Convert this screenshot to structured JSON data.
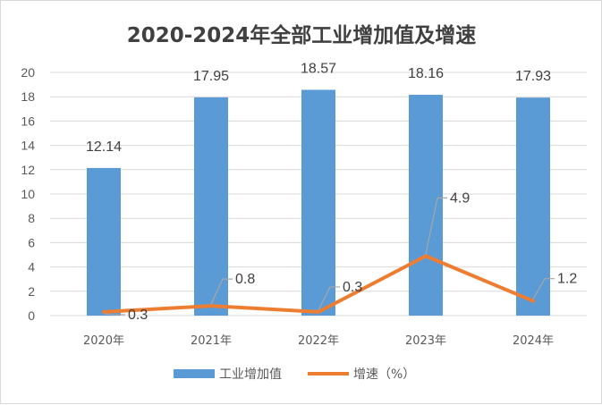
{
  "chart_data": {
    "type": "bar",
    "title": "2020-2024年全部工业增加值及增速",
    "categories": [
      "2020年",
      "2021年",
      "2022年",
      "2023年",
      "2024年"
    ],
    "series": [
      {
        "name": "工业增加值",
        "type": "bar",
        "color": "#5b9bd5",
        "values": [
          12.14,
          17.95,
          18.57,
          18.16,
          17.93
        ],
        "labels": [
          "12.14",
          "17.95",
          "18.57",
          "18.16",
          "17.93"
        ]
      },
      {
        "name": "增速（%）",
        "type": "line",
        "color": "#ed7d31",
        "values": [
          0.3,
          0.8,
          0.3,
          4.9,
          1.2
        ],
        "labels": [
          "0.3",
          "0.8",
          "0.3",
          "4.9",
          "1.2"
        ]
      }
    ],
    "ylim": [
      0,
      20
    ],
    "yticks": [
      "0",
      "2",
      "4",
      "6",
      "8",
      "10",
      "12",
      "14",
      "16",
      "18",
      "20"
    ],
    "grid": true,
    "legend": "bottom"
  }
}
